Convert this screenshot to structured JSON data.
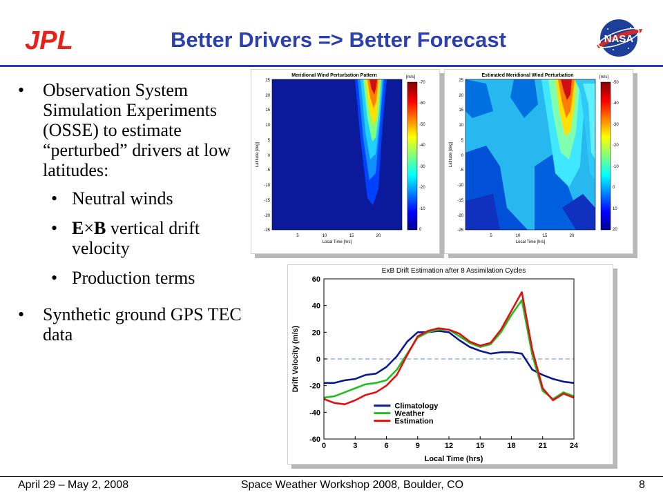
{
  "slide": {
    "title": "Better Drivers => Better Forecast",
    "logos": {
      "left": "JPL",
      "right": "NASA"
    },
    "bullets": {
      "b1": "Observation System Simulation Experiments (OSSE) to estimate “perturbed” drivers at low latitudes:",
      "sub": {
        "neutral": "Neutral winds",
        "exb_E": "E",
        "exb_times": "×",
        "exb_B": "B",
        "exb_rest": " vertical drift velocity",
        "production": "Production terms"
      },
      "b2": "Synthetic ground GPS TEC data"
    }
  },
  "footer": {
    "date": "April 29 – May 2, 2008",
    "event": "Space Weather Workshop 2008, Boulder, CO",
    "page": "8"
  },
  "colors": {
    "title": "#2b3fb0",
    "rule": "#2040b0",
    "jpl_red": "#e8221b",
    "nasa_blue": "#1d3f9a"
  },
  "chart_data": [
    {
      "type": "heatmap",
      "title": "Meridional Wind Perturbation Pattern",
      "xlabel": "Local Time [hrs]",
      "ylabel": "Latitude [deg]",
      "x_ticks": [
        "5",
        "10",
        "15",
        "20"
      ],
      "y_ticks": [
        "25",
        "20",
        "15",
        "10",
        "5",
        "0",
        "-5",
        "-10",
        "-15",
        "-20",
        "-25"
      ],
      "colorbar_label": "[m/s]",
      "colorbar_ticks": [
        "-70",
        "-60",
        "-50",
        "-40",
        "-30",
        "-20",
        "-10",
        "0"
      ]
    },
    {
      "type": "heatmap",
      "title": "Estimated Meridional Wind Perturbation",
      "xlabel": "Local Time [hrs]",
      "ylabel": "Latitude [deg]",
      "x_ticks": [
        "5",
        "10",
        "15",
        "20"
      ],
      "y_ticks": [
        "25",
        "20",
        "15",
        "10",
        "5",
        "0",
        "-5",
        "-10",
        "-15",
        "-20",
        "-25"
      ],
      "colorbar_label": "[m/s]",
      "colorbar_ticks": [
        "-50",
        "-40",
        "-30",
        "-20",
        "-10",
        "0",
        "10",
        "20"
      ]
    },
    {
      "type": "line",
      "title": "ExB Drift Estimation after 8 Assimilation Cycles",
      "xlabel": "Local Time (hrs)",
      "ylabel": "Drift Velocity (m/s)",
      "xlim": [
        0,
        24
      ],
      "ylim": [
        -60,
        60
      ],
      "x_ticks": [
        0,
        3,
        6,
        9,
        12,
        15,
        18,
        21,
        24
      ],
      "y_ticks": [
        -60,
        -40,
        -20,
        0,
        20,
        40,
        60
      ],
      "x": [
        0,
        1,
        2,
        3,
        4,
        5,
        6,
        7,
        8,
        9,
        10,
        11,
        12,
        13,
        14,
        15,
        16,
        17,
        18,
        19,
        20,
        21,
        22,
        23,
        24
      ],
      "series": [
        {
          "name": "Climatology",
          "color": "#0a1a8c",
          "values": [
            -18,
            -18,
            -16,
            -15,
            -12,
            -11,
            -6,
            2,
            13,
            20,
            20,
            21,
            20,
            14,
            9,
            6,
            4,
            5,
            5,
            4,
            -8,
            -12,
            -15,
            -17,
            -18
          ]
        },
        {
          "name": "Weather",
          "color": "#1fbf1f",
          "values": [
            -29,
            -28,
            -25,
            -22,
            -19,
            -18,
            -16,
            -8,
            4,
            16,
            20,
            22,
            22,
            17,
            12,
            9,
            11,
            20,
            33,
            44,
            3,
            -24,
            -30,
            -25,
            -28
          ]
        },
        {
          "name": "Estimation",
          "color": "#e01010",
          "values": [
            -30,
            -33,
            -34,
            -31,
            -27,
            -25,
            -20,
            -12,
            3,
            17,
            21,
            23,
            22,
            19,
            13,
            10,
            12,
            22,
            36,
            50,
            7,
            -22,
            -31,
            -26,
            -29
          ]
        }
      ],
      "reference_line": 0,
      "legend_position": "bottom-left"
    }
  ]
}
